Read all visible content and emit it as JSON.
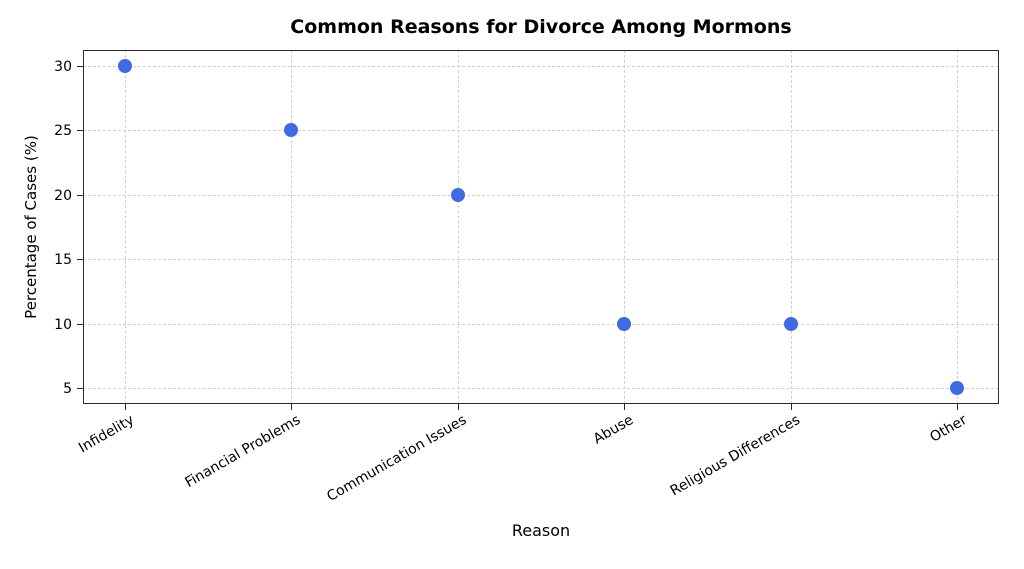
{
  "chart_data": {
    "type": "scatter",
    "title": "Common Reasons for Divorce Among Mormons",
    "xlabel": "Reason",
    "ylabel": "Percentage of Cases (%)",
    "categories": [
      "Infidelity",
      "Financial Problems",
      "Communication Issues",
      "Abuse",
      "Religious Differences",
      "Other"
    ],
    "values": [
      30,
      25,
      20,
      10,
      10,
      5
    ],
    "yticks": [
      5,
      10,
      15,
      20,
      25,
      30
    ],
    "ylim": [
      3.75,
      31.25
    ],
    "xlim": [
      -0.25,
      5.25
    ],
    "grid": true,
    "grid_style": "dashed",
    "legend": "none",
    "marker_color": "#4169E1",
    "grid_color": "#d0d0d0",
    "spine_color": "#2a2a2a",
    "xtick_rotation_deg": 30
  }
}
